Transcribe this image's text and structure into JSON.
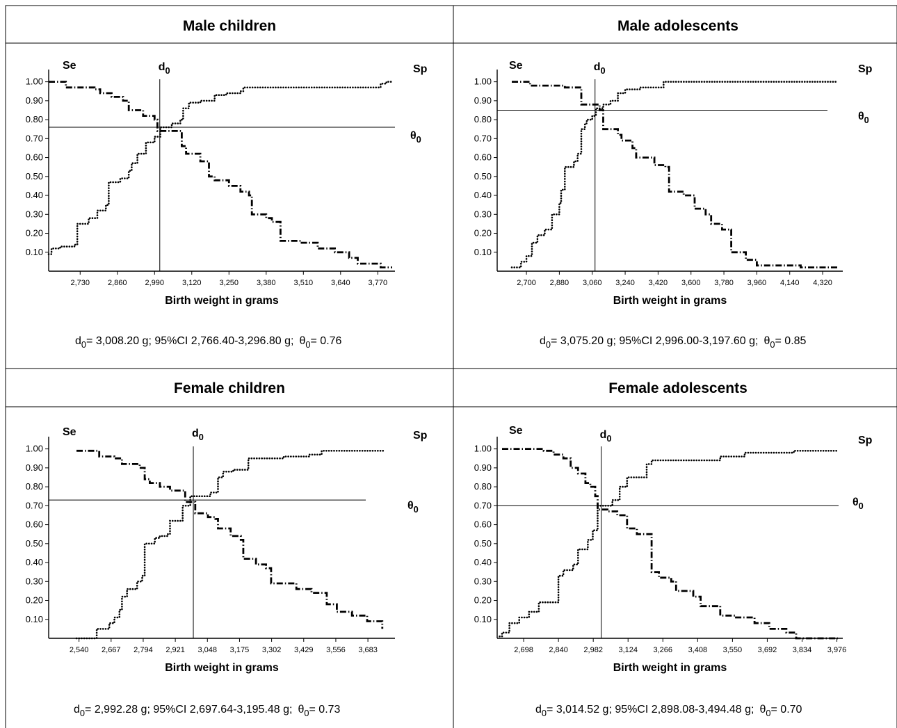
{
  "chart_data": [
    {
      "type": "line",
      "title": "Male children",
      "se_label": "Se",
      "sp_label": "Sp",
      "d0_label": "d",
      "d0_sub": "0",
      "theta_label": "θ",
      "theta_sub": "0",
      "xlabel": "Birth weight in grams",
      "x_ticks": [
        "2,730",
        "2,860",
        "2,990",
        "3,120",
        "3,250",
        "3,380",
        "3,510",
        "3,640",
        "3,770"
      ],
      "y_ticks": [
        "0.10",
        "0.20",
        "0.30",
        "0.40",
        "0.50",
        "0.60",
        "0.70",
        "0.80",
        "0.90",
        "1.00"
      ],
      "xlim": [
        2620,
        3830
      ],
      "ylim": [
        0,
        1.05
      ],
      "d0": 3008.2,
      "theta0": 0.76,
      "stats": {
        "d0_text": "= 3,008.20 g;  95%CI 2,766.40-3,296.80 g;",
        "theta_text": "= 0.76"
      },
      "series": [
        {
          "name": "Se",
          "style": "dashdot",
          "x": [
            2620,
            2660,
            2680,
            2750,
            2780,
            2800,
            2840,
            2880,
            2900,
            2920,
            2950,
            2990,
            3000,
            3080,
            3085,
            3100,
            3150,
            3180,
            3200,
            3250,
            3290,
            3320,
            3330,
            3380,
            3400,
            3430,
            3500,
            3560,
            3620,
            3670,
            3700,
            3780,
            3820
          ],
          "y": [
            1.0,
            1.0,
            0.97,
            0.97,
            0.96,
            0.94,
            0.92,
            0.9,
            0.85,
            0.85,
            0.82,
            0.8,
            0.74,
            0.74,
            0.66,
            0.62,
            0.58,
            0.5,
            0.48,
            0.45,
            0.42,
            0.4,
            0.3,
            0.28,
            0.26,
            0.16,
            0.15,
            0.12,
            0.1,
            0.07,
            0.04,
            0.02,
            0.02
          ]
        },
        {
          "name": "Sp",
          "style": "dotted",
          "x": [
            2620,
            2630,
            2660,
            2710,
            2720,
            2760,
            2790,
            2820,
            2830,
            2870,
            2900,
            2910,
            2930,
            2960,
            2990,
            3010,
            3050,
            3080,
            3090,
            3110,
            3150,
            3200,
            3240,
            3290,
            3300,
            3400,
            3500,
            3640,
            3720,
            3780,
            3800,
            3820
          ],
          "y": [
            0.09,
            0.12,
            0.13,
            0.14,
            0.25,
            0.28,
            0.32,
            0.35,
            0.47,
            0.49,
            0.53,
            0.57,
            0.62,
            0.68,
            0.71,
            0.76,
            0.78,
            0.8,
            0.86,
            0.89,
            0.9,
            0.93,
            0.94,
            0.95,
            0.97,
            0.97,
            0.97,
            0.97,
            0.97,
            0.99,
            1.0,
            1.0
          ]
        }
      ]
    },
    {
      "type": "line",
      "title": "Male adolescents",
      "se_label": "Se",
      "sp_label": "Sp",
      "d0_label": "d",
      "d0_sub": "0",
      "theta_label": "θ",
      "theta_sub": "0",
      "xlabel": "Birth weight in grams",
      "x_ticks": [
        "2,700",
        "2,880",
        "3,060",
        "3,240",
        "3,420",
        "3,600",
        "3,780",
        "3,960",
        "4,140",
        "4,320"
      ],
      "y_ticks": [
        "0.10",
        "0.20",
        "0.30",
        "0.40",
        "0.50",
        "0.60",
        "0.70",
        "0.80",
        "0.90",
        "1.00"
      ],
      "xlim": [
        2540,
        4430
      ],
      "ylim": [
        0,
        1.05
      ],
      "d0": 3075.2,
      "theta0": 0.85,
      "stats": {
        "d0_text": "= 3,075.20 g;  95%CI 2,996.00-3,197.60 g;",
        "theta_text": "= 0.85"
      },
      "series": [
        {
          "name": "Se",
          "style": "dashdot",
          "x": [
            2620,
            2690,
            2720,
            2800,
            2910,
            3000,
            3020,
            3100,
            3120,
            3200,
            3220,
            3280,
            3300,
            3400,
            3460,
            3480,
            3560,
            3620,
            3680,
            3710,
            3770,
            3820,
            3900,
            3960,
            4200,
            4400
          ],
          "y": [
            1.0,
            1.0,
            0.98,
            0.98,
            0.97,
            0.88,
            0.88,
            0.85,
            0.75,
            0.72,
            0.69,
            0.65,
            0.6,
            0.56,
            0.55,
            0.42,
            0.4,
            0.33,
            0.3,
            0.25,
            0.22,
            0.1,
            0.06,
            0.03,
            0.02,
            0.02
          ]
        },
        {
          "name": "Sp",
          "style": "dotted",
          "x": [
            2620,
            2670,
            2700,
            2730,
            2760,
            2800,
            2840,
            2880,
            2890,
            2910,
            2960,
            2980,
            3000,
            3020,
            3030,
            3060,
            3080,
            3120,
            3160,
            3200,
            3240,
            3320,
            3360,
            3400,
            3450,
            3600,
            4000,
            4300,
            4400
          ],
          "y": [
            0.02,
            0.05,
            0.08,
            0.15,
            0.19,
            0.22,
            0.3,
            0.36,
            0.43,
            0.55,
            0.58,
            0.62,
            0.75,
            0.78,
            0.8,
            0.82,
            0.86,
            0.88,
            0.9,
            0.94,
            0.96,
            0.97,
            0.97,
            0.97,
            1.0,
            1.0,
            1.0,
            1.0,
            1.0
          ]
        }
      ]
    },
    {
      "type": "line",
      "title": "Female children",
      "se_label": "Se",
      "sp_label": "Sp",
      "d0_label": "d",
      "d0_sub": "0",
      "theta_label": "θ",
      "theta_sub": "0",
      "xlabel": "Birth weight in grams",
      "x_ticks": [
        "2,540",
        "2,667",
        "2,794",
        "2,921",
        "3,048",
        "3,175",
        "3,302",
        "3,429",
        "3,556",
        "3,683"
      ],
      "y_ticks": [
        "0.10",
        "0.20",
        "0.30",
        "0.40",
        "0.50",
        "0.60",
        "0.70",
        "0.80",
        "0.90",
        "1.00"
      ],
      "xlim": [
        2420,
        3790
      ],
      "ylim": [
        0,
        1.05
      ],
      "d0": 2992.28,
      "theta0": 0.73,
      "stats": {
        "d0_text": "= 2,992.28 g;  95%CI  2,697.64-3,195.48 g;",
        "theta_text": "= 0.73"
      },
      "series": [
        {
          "name": "Se",
          "style": "dashdot",
          "x": [
            2530,
            2570,
            2620,
            2680,
            2710,
            2780,
            2800,
            2820,
            2860,
            2900,
            2960,
            3000,
            3050,
            3080,
            3090,
            3140,
            3180,
            3190,
            3240,
            3280,
            3300,
            3400,
            3460,
            3520,
            3560,
            3620,
            3680,
            3740
          ],
          "y": [
            0.99,
            0.99,
            0.96,
            0.95,
            0.92,
            0.9,
            0.84,
            0.82,
            0.8,
            0.78,
            0.72,
            0.66,
            0.64,
            0.63,
            0.58,
            0.54,
            0.52,
            0.42,
            0.39,
            0.37,
            0.29,
            0.26,
            0.24,
            0.18,
            0.14,
            0.12,
            0.09,
            0.05
          ]
        },
        {
          "name": "Sp",
          "style": "dotted",
          "x": [
            2530,
            2600,
            2610,
            2660,
            2680,
            2700,
            2710,
            2730,
            2770,
            2790,
            2800,
            2840,
            2860,
            2890,
            2900,
            2950,
            2980,
            3060,
            3090,
            3110,
            3150,
            3210,
            3280,
            3350,
            3450,
            3500,
            3620,
            3750
          ],
          "y": [
            0.0,
            0.0,
            0.05,
            0.08,
            0.11,
            0.15,
            0.22,
            0.26,
            0.3,
            0.33,
            0.5,
            0.53,
            0.54,
            0.55,
            0.62,
            0.7,
            0.75,
            0.77,
            0.85,
            0.88,
            0.89,
            0.95,
            0.95,
            0.96,
            0.97,
            0.99,
            0.99,
            0.99
          ]
        }
      ]
    },
    {
      "type": "line",
      "title": "Female adolescents",
      "se_label": "Se",
      "sp_label": "Sp",
      "d0_label": "d",
      "d0_sub": "0",
      "theta_label": "θ",
      "theta_sub": "0",
      "xlabel": "Birth weight in grams",
      "x_ticks": [
        "2,698",
        "2,840",
        "2,982",
        "3,124",
        "3,266",
        "3,408",
        "3,550",
        "3,692",
        "3,834",
        "3,976"
      ],
      "y_ticks": [
        "0.10",
        "0.20",
        "0.30",
        "0.40",
        "0.50",
        "0.60",
        "0.70",
        "0.80",
        "0.90",
        "1.00"
      ],
      "xlim": [
        2590,
        4000
      ],
      "ylim": [
        0,
        1.05
      ],
      "d0": 3014.52,
      "theta0": 0.7,
      "stats": {
        "d0_text": "= 3,014.52 g;  95%CI 2,898.08-3,494.48 g;",
        "theta_text": "= 0.70"
      },
      "series": [
        {
          "name": "Se",
          "style": "dashdot",
          "x": [
            2610,
            2700,
            2780,
            2820,
            2860,
            2890,
            2920,
            2950,
            2970,
            2990,
            3000,
            3040,
            3080,
            3120,
            3160,
            3200,
            3220,
            3250,
            3300,
            3320,
            3390,
            3420,
            3500,
            3560,
            3640,
            3700,
            3770,
            3810,
            3900,
            3980
          ],
          "y": [
            1.0,
            1.0,
            0.99,
            0.97,
            0.95,
            0.9,
            0.87,
            0.82,
            0.8,
            0.75,
            0.68,
            0.67,
            0.65,
            0.58,
            0.55,
            0.55,
            0.35,
            0.32,
            0.3,
            0.25,
            0.22,
            0.17,
            0.12,
            0.11,
            0.08,
            0.05,
            0.03,
            0.0,
            0.0,
            0.0
          ]
        },
        {
          "name": "Sp",
          "style": "dotted",
          "x": [
            2600,
            2610,
            2640,
            2680,
            2720,
            2760,
            2800,
            2840,
            2860,
            2900,
            2920,
            2960,
            2980,
            3000,
            3060,
            3090,
            3120,
            3160,
            3200,
            3220,
            3300,
            3400,
            3500,
            3600,
            3700,
            3800,
            3980
          ],
          "y": [
            0.01,
            0.03,
            0.08,
            0.11,
            0.14,
            0.19,
            0.19,
            0.33,
            0.36,
            0.39,
            0.47,
            0.52,
            0.57,
            0.7,
            0.73,
            0.8,
            0.85,
            0.85,
            0.92,
            0.94,
            0.94,
            0.94,
            0.96,
            0.98,
            0.98,
            0.99,
            0.99
          ]
        }
      ]
    }
  ]
}
